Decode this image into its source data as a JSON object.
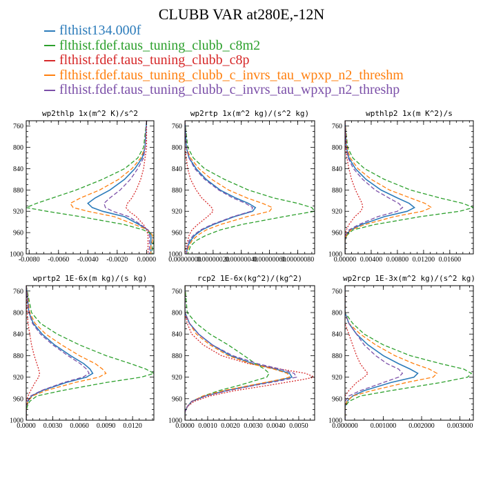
{
  "title": "CLUBB VAR at280E,-12N",
  "legend": [
    {
      "label": "flthist134.000f",
      "color": "#2b7bba"
    },
    {
      "label": "flthist.fdef.taus_tuning_clubb_c8m2",
      "color": "#2ca02c"
    },
    {
      "label": "flthist.fdef.taus_tuning_clubb_c8p",
      "color": "#d62728"
    },
    {
      "label": "flthist.fdef.taus_tuning_clubb_c_invrs_tau_wpxp_n2_threshm",
      "color": "#ff7f0e"
    },
    {
      "label": "flthist.fdef.taus_tuning_clubb_c_invrs_tau_wpxp_n2_threshp",
      "color": "#7b4fa8"
    }
  ],
  "chart_data": [
    {
      "type": "line",
      "title": "wp2thlp  1x(m^2 K)/s^2",
      "xlim": [
        -0.0082,
        0.0005
      ],
      "ylim": [
        1000,
        750
      ],
      "yticks": [
        "760",
        "800",
        "840",
        "880",
        "920",
        "960",
        "1000"
      ],
      "xticks": [
        {
          "v": -0.008,
          "label": "-0.0080"
        },
        {
          "v": -0.006,
          "label": "-0.0060"
        },
        {
          "v": -0.004,
          "label": "-0.0040"
        },
        {
          "v": -0.002,
          "label": "-0.0020"
        },
        {
          "v": 0.0,
          "label": "0.0000"
        }
      ],
      "y": [
        750,
        800,
        820,
        840,
        860,
        880,
        895,
        905,
        913,
        920,
        930,
        945,
        955,
        965,
        975,
        985,
        1000
      ],
      "series": [
        {
          "name": "flthist134.000f",
          "values": [
            0,
            -0.0001,
            -0.0003,
            -0.0008,
            -0.0015,
            -0.0025,
            -0.0035,
            -0.004,
            -0.0037,
            -0.003,
            -0.0015,
            -0.0005,
            0.0001,
            0.0003,
            0.0003,
            0.0003,
            0.0003
          ]
        },
        {
          "name": "flthist.fdef.taus_tuning_clubb_c8m2",
          "values": [
            0,
            -0.0002,
            -0.0006,
            -0.0015,
            -0.003,
            -0.0048,
            -0.0064,
            -0.0075,
            -0.0082,
            -0.0068,
            -0.0045,
            -0.0015,
            -0.0002,
            0.0005,
            0.0005,
            0.0004,
            0.0004
          ]
        },
        {
          "name": "flthist.fdef.taus_tuning_clubb_c8p",
          "values": [
            0,
            0,
            -0.0001,
            -0.0002,
            -0.0004,
            -0.0007,
            -0.001,
            -0.0013,
            -0.0014,
            -0.0012,
            -0.0007,
            -0.0002,
            0.0,
            0.0001,
            0.0001,
            0.0001,
            0.0001
          ]
        },
        {
          "name": "flthist.fdef.taus_tuning_clubb_c_invrs_tau_wpxp_n2_threshm",
          "values": [
            0,
            -0.0001,
            -0.0004,
            -0.001,
            -0.0019,
            -0.0032,
            -0.0045,
            -0.0052,
            -0.005,
            -0.004,
            -0.0022,
            -0.0008,
            0.0001,
            0.0004,
            0.0004,
            0.0003,
            0.0003
          ]
        },
        {
          "name": "flthist.fdef.taus_tuning_clubb_c_invrs_tau_wpxp_n2_threshp",
          "values": [
            0,
            -0.0001,
            -0.0002,
            -0.0006,
            -0.0011,
            -0.0018,
            -0.0025,
            -0.0029,
            -0.0028,
            -0.0023,
            -0.0012,
            -0.0004,
            0.0001,
            0.0002,
            0.0002,
            0.0002,
            0.0002
          ]
        }
      ]
    },
    {
      "type": "line",
      "title": "wp2rtp  1x(m^2 kg)/(s^2 kg)",
      "xlim": [
        0,
        9.2e-07
      ],
      "ylim": [
        1000,
        750
      ],
      "yticks": [
        "760",
        "800",
        "840",
        "880",
        "920",
        "960",
        "1000"
      ],
      "xticks": [
        {
          "v": 0.0,
          "label": "0.00000000"
        },
        {
          "v": 2e-07,
          "label": "0.00000020"
        },
        {
          "v": 4e-07,
          "label": "0.00000040"
        },
        {
          "v": 6e-07,
          "label": "0.00000060"
        },
        {
          "v": 8e-07,
          "label": "0.00000080"
        }
      ],
      "y": [
        750,
        800,
        820,
        840,
        860,
        880,
        895,
        905,
        913,
        920,
        930,
        945,
        955,
        965,
        975,
        985,
        1000
      ],
      "series": [
        {
          "name": "flthist134.000f",
          "values": [
            0,
            1e-08,
            3e-08,
            8e-08,
            1.5e-07,
            2.5e-07,
            3.6e-07,
            4.5e-07,
            5e-07,
            4.8e-07,
            3.5e-07,
            2e-07,
            1.2e-07,
            7e-08,
            4e-08,
            2e-08,
            1e-08
          ]
        },
        {
          "name": "flthist.fdef.taus_tuning_clubb_c8m2",
          "values": [
            0,
            2e-08,
            6e-08,
            1.4e-07,
            2.8e-07,
            4.5e-07,
            6.3e-07,
            8e-07,
            9e-07,
            9.2e-07,
            7e-07,
            4e-07,
            2.5e-07,
            1.5e-07,
            8e-08,
            4e-08,
            2e-08
          ]
        },
        {
          "name": "flthist.fdef.taus_tuning_clubb_c8p",
          "values": [
            0,
            0,
            1e-08,
            2e-08,
            4e-08,
            8e-08,
            1.2e-07,
            1.6e-07,
            1.9e-07,
            2e-07,
            1.6e-07,
            9e-08,
            5e-08,
            3e-08,
            2e-08,
            1e-08,
            0
          ]
        },
        {
          "name": "flthist.fdef.taus_tuning_clubb_c_invrs_tau_wpxp_n2_threshm",
          "values": [
            0,
            1e-08,
            4e-08,
            1e-07,
            1.9e-07,
            3.1e-07,
            4.4e-07,
            5.5e-07,
            6.2e-07,
            6e-07,
            4.4e-07,
            2.5e-07,
            1.5e-07,
            9e-08,
            5e-08,
            3e-08,
            1e-08
          ]
        },
        {
          "name": "flthist.fdef.taus_tuning_clubb_c_invrs_tau_wpxp_n2_threshp",
          "values": [
            0,
            1e-08,
            3e-08,
            7e-08,
            1.4e-07,
            2.4e-07,
            3.4e-07,
            4.3e-07,
            4.8e-07,
            4.7e-07,
            3.4e-07,
            1.9e-07,
            1.1e-07,
            6e-08,
            3e-08,
            2e-08,
            1e-08
          ]
        }
      ]
    },
    {
      "type": "line",
      "title": "wpthlp2  1x(m K^2)/s",
      "xlim": [
        0,
        0.0196
      ],
      "ylim": [
        1000,
        750
      ],
      "yticks": [
        "760",
        "800",
        "840",
        "880",
        "920",
        "960",
        "1000"
      ],
      "xticks": [
        {
          "v": 0.0,
          "label": "0.00000"
        },
        {
          "v": 0.004,
          "label": "0.00400"
        },
        {
          "v": 0.008,
          "label": "0.00800"
        },
        {
          "v": 0.012,
          "label": "0.01200"
        },
        {
          "v": 0.016,
          "label": "0.01600"
        }
      ],
      "y": [
        750,
        800,
        820,
        840,
        860,
        880,
        895,
        905,
        913,
        920,
        930,
        945,
        955,
        965,
        975,
        985,
        1000
      ],
      "series": [
        {
          "name": "flthist134.000f",
          "values": [
            0,
            0.0002,
            0.0006,
            0.0016,
            0.0032,
            0.0055,
            0.008,
            0.0098,
            0.0106,
            0.0095,
            0.006,
            0.0025,
            0.0008,
            0.0002,
            0,
            0,
            0
          ]
        },
        {
          "name": "flthist.fdef.taus_tuning_clubb_c8m2",
          "values": [
            0,
            0.0004,
            0.0012,
            0.003,
            0.006,
            0.01,
            0.0145,
            0.018,
            0.0196,
            0.0175,
            0.0115,
            0.0045,
            0.0012,
            0.0003,
            0,
            0,
            0
          ]
        },
        {
          "name": "flthist.fdef.taus_tuning_clubb_c8p",
          "values": [
            0,
            0.0001,
            0.0003,
            0.0006,
            0.001,
            0.0016,
            0.0022,
            0.0026,
            0.0027,
            0.0024,
            0.0015,
            0.0006,
            0.0002,
            0,
            0,
            0,
            0
          ]
        },
        {
          "name": "flthist.fdef.taus_tuning_clubb_c_invrs_tau_wpxp_n2_threshm",
          "values": [
            0,
            0.0003,
            0.0008,
            0.002,
            0.004,
            0.0068,
            0.01,
            0.0122,
            0.0132,
            0.0118,
            0.0075,
            0.003,
            0.0009,
            0.0002,
            0,
            0,
            0
          ]
        },
        {
          "name": "flthist.fdef.taus_tuning_clubb_c_invrs_tau_wpxp_n2_threshp",
          "values": [
            0,
            0.0002,
            0.0005,
            0.0013,
            0.0027,
            0.0046,
            0.0067,
            0.0082,
            0.0088,
            0.008,
            0.005,
            0.0021,
            0.0006,
            0.0001,
            0,
            0,
            0
          ]
        }
      ]
    },
    {
      "type": "line",
      "title": "wprtp2  1E-6x(m kg)/(s kg)",
      "xlim": [
        0,
        0.0144
      ],
      "ylim": [
        1000,
        750
      ],
      "yticks": [
        "760",
        "800",
        "840",
        "880",
        "920",
        "960",
        "1000"
      ],
      "xticks": [
        {
          "v": 0.0,
          "label": "0.0000"
        },
        {
          "v": 0.003,
          "label": "0.0030"
        },
        {
          "v": 0.006,
          "label": "0.0060"
        },
        {
          "v": 0.009,
          "label": "0.0090"
        },
        {
          "v": 0.012,
          "label": "0.0120"
        }
      ],
      "y": [
        750,
        800,
        820,
        840,
        860,
        880,
        895,
        905,
        913,
        920,
        930,
        945,
        955,
        965,
        975,
        985,
        1000
      ],
      "series": [
        {
          "name": "flthist134.000f",
          "values": [
            0,
            0.0003,
            0.0008,
            0.0018,
            0.0032,
            0.005,
            0.0065,
            0.0072,
            0.0075,
            0.0068,
            0.0045,
            0.0018,
            0.0006,
            0.0002,
            0,
            0,
            0
          ]
        },
        {
          "name": "flthist.fdef.taus_tuning_clubb_c8m2",
          "values": [
            0,
            0.0006,
            0.0016,
            0.0035,
            0.006,
            0.009,
            0.0118,
            0.0135,
            0.0144,
            0.013,
            0.009,
            0.004,
            0.0012,
            0.0004,
            0.0001,
            0,
            0
          ]
        },
        {
          "name": "flthist.fdef.taus_tuning_clubb_c8p",
          "values": [
            0,
            0.0001,
            0.0002,
            0.0004,
            0.0006,
            0.0009,
            0.0012,
            0.0014,
            0.0015,
            0.0014,
            0.001,
            0.0005,
            0.0002,
            0,
            0,
            0,
            0
          ]
        },
        {
          "name": "flthist.fdef.taus_tuning_clubb_c_invrs_tau_wpxp_n2_threshm",
          "values": [
            0,
            0.0004,
            0.001,
            0.0022,
            0.004,
            0.006,
            0.0078,
            0.0086,
            0.009,
            0.0082,
            0.0055,
            0.0022,
            0.0007,
            0.0002,
            0,
            0,
            0
          ]
        },
        {
          "name": "flthist.fdef.taus_tuning_clubb_c_invrs_tau_wpxp_n2_threshp",
          "values": [
            0,
            0.0003,
            0.0007,
            0.0016,
            0.003,
            0.0047,
            0.0061,
            0.0068,
            0.0071,
            0.0064,
            0.0042,
            0.0017,
            0.0005,
            0.0001,
            0,
            0,
            0
          ]
        }
      ]
    },
    {
      "type": "line",
      "title": "rcp2  1E-6x(kg^2)/(kg^2)",
      "xlim": [
        0,
        0.0057
      ],
      "ylim": [
        1000,
        750
      ],
      "yticks": [
        "760",
        "800",
        "840",
        "880",
        "920",
        "960",
        "1000"
      ],
      "xticks": [
        {
          "v": 0.0,
          "label": "0.0000"
        },
        {
          "v": 0.001,
          "label": "0.0010"
        },
        {
          "v": 0.002,
          "label": "0.0020"
        },
        {
          "v": 0.003,
          "label": "0.0030"
        },
        {
          "v": 0.004,
          "label": "0.0040"
        },
        {
          "v": 0.005,
          "label": "0.0050"
        }
      ],
      "y": [
        750,
        800,
        820,
        840,
        860,
        880,
        895,
        905,
        913,
        920,
        925,
        935,
        945,
        955,
        965,
        975,
        985,
        1000
      ],
      "series": [
        {
          "name": "flthist134.000f",
          "values": [
            0,
            0,
            0.0002,
            0.0006,
            0.0012,
            0.002,
            0.003,
            0.004,
            0.0046,
            0.0047,
            0.0042,
            0.003,
            0.0018,
            0.0009,
            0.0003,
            0.0001,
            0,
            0
          ]
        },
        {
          "name": "flthist.fdef.taus_tuning_clubb_c8m2",
          "values": [
            0,
            0.0001,
            0.0005,
            0.0011,
            0.0019,
            0.0026,
            0.0031,
            0.0035,
            0.0037,
            0.0036,
            0.0032,
            0.0024,
            0.0015,
            0.0008,
            0.0003,
            0.0001,
            0,
            0
          ]
        },
        {
          "name": "flthist.fdef.taus_tuning_clubb_c8p",
          "values": [
            0,
            0,
            0.0001,
            0.0003,
            0.0008,
            0.0016,
            0.0028,
            0.0042,
            0.0053,
            0.0057,
            0.0051,
            0.0037,
            0.0022,
            0.0011,
            0.0004,
            0.0001,
            0,
            0
          ]
        },
        {
          "name": "flthist.fdef.taus_tuning_clubb_c_invrs_tau_wpxp_n2_threshm",
          "values": [
            0,
            0,
            0.0002,
            0.0005,
            0.0011,
            0.0019,
            0.0029,
            0.0039,
            0.0045,
            0.0046,
            0.0041,
            0.0029,
            0.0017,
            0.0008,
            0.0003,
            0.0001,
            0,
            0
          ]
        },
        {
          "name": "flthist.fdef.taus_tuning_clubb_c_invrs_tau_wpxp_n2_threshp",
          "values": [
            0,
            0,
            0.0002,
            0.0006,
            0.0012,
            0.0021,
            0.0032,
            0.0042,
            0.0048,
            0.0049,
            0.0044,
            0.0031,
            0.0019,
            0.0009,
            0.0003,
            0.0001,
            0,
            0
          ]
        }
      ]
    },
    {
      "type": "line",
      "title": "wp2rcp  1E-3x(m^2 kg)/(s^2 kg)",
      "xlim": [
        0,
        0.00335
      ],
      "ylim": [
        1000,
        750
      ],
      "yticks": [
        "760",
        "800",
        "840",
        "880",
        "920",
        "960",
        "1000"
      ],
      "xticks": [
        {
          "v": 0.0,
          "label": "0.000000"
        },
        {
          "v": 0.001,
          "label": "0.001000"
        },
        {
          "v": 0.002,
          "label": "0.002000"
        },
        {
          "v": 0.003,
          "label": "0.003000"
        }
      ],
      "y": [
        750,
        800,
        820,
        840,
        860,
        880,
        895,
        905,
        913,
        920,
        930,
        945,
        955,
        965,
        975,
        985,
        1000
      ],
      "series": [
        {
          "name": "flthist134.000f",
          "values": [
            0,
            0,
            0.0001,
            0.0003,
            0.0006,
            0.001,
            0.0014,
            0.0017,
            0.0019,
            0.0018,
            0.0012,
            0.0005,
            0.0002,
            5e-05,
            0,
            0,
            0
          ]
        },
        {
          "name": "flthist.fdef.taus_tuning_clubb_c8m2",
          "values": [
            0,
            0,
            0.0002,
            0.0005,
            0.001,
            0.0017,
            0.0025,
            0.0031,
            0.0033,
            0.0032,
            0.0025,
            0.0012,
            0.0004,
            0.0001,
            0,
            0,
            0
          ]
        },
        {
          "name": "flthist.fdef.taus_tuning_clubb_c8p",
          "values": [
            0,
            0,
            0,
            0.0001,
            0.0002,
            0.0003,
            0.0004,
            0.0005,
            0.0006,
            0.0005,
            0.0003,
            0.0001,
            0,
            0,
            0,
            0,
            0
          ]
        },
        {
          "name": "flthist.fdef.taus_tuning_clubb_c_invrs_tau_wpxp_n2_threshm",
          "values": [
            0,
            0,
            0.0001,
            0.0004,
            0.0008,
            0.0013,
            0.0018,
            0.0022,
            0.0024,
            0.0023,
            0.0016,
            0.0007,
            0.0002,
            5e-05,
            0,
            0,
            0
          ]
        },
        {
          "name": "flthist.fdef.taus_tuning_clubb_c_invrs_tau_wpxp_n2_threshp",
          "values": [
            0,
            0,
            0.0001,
            0.0003,
            0.0005,
            0.0008,
            0.0011,
            0.0014,
            0.0015,
            0.0014,
            0.001,
            0.0004,
            0.0001,
            0,
            0,
            0,
            0
          ]
        }
      ]
    }
  ]
}
